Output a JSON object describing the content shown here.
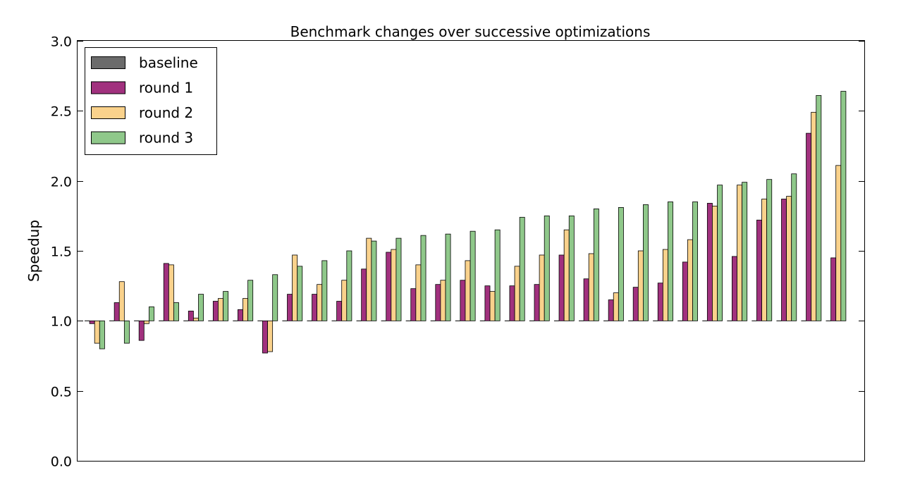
{
  "chart_data": {
    "type": "bar",
    "title": "Benchmark changes over successive optimizations",
    "xlabel": "",
    "ylabel": "Speedup",
    "ylim": [
      0.0,
      3.0
    ],
    "yticks": [
      0.0,
      0.5,
      1.0,
      1.5,
      2.0,
      2.5,
      3.0
    ],
    "ytick_labels": [
      "0.0",
      "0.5",
      "1.0",
      "1.5",
      "2.0",
      "2.5",
      "3.0"
    ],
    "baseline": 1.0,
    "grid": false,
    "legend": {
      "placement": "top-left"
    },
    "series": [
      {
        "name": "baseline",
        "color": "#6b6b6b",
        "values": [
          1.0,
          1.0,
          1.0,
          1.0,
          1.0,
          1.0,
          1.0,
          1.0,
          1.0,
          1.0,
          1.0,
          1.0,
          1.0,
          1.0,
          1.0,
          1.0,
          1.0,
          1.0,
          1.0,
          1.0,
          1.0,
          1.0,
          1.0,
          1.0,
          1.0,
          1.0,
          1.0,
          1.0,
          1.0,
          1.0,
          1.0
        ]
      },
      {
        "name": "round 1",
        "color": "#a1317e",
        "values": [
          0.98,
          1.13,
          0.86,
          1.41,
          1.07,
          1.14,
          1.08,
          0.77,
          1.19,
          1.19,
          1.14,
          1.37,
          1.49,
          1.23,
          1.26,
          1.29,
          1.25,
          1.25,
          1.26,
          1.47,
          1.3,
          1.15,
          1.24,
          1.27,
          1.42,
          1.84,
          1.46,
          1.72,
          1.87,
          2.34,
          1.45
        ]
      },
      {
        "name": "round 2",
        "color": "#fad28c",
        "values": [
          0.84,
          1.28,
          0.98,
          1.4,
          1.02,
          1.16,
          1.16,
          0.78,
          1.47,
          1.26,
          1.29,
          1.59,
          1.51,
          1.4,
          1.29,
          1.43,
          1.21,
          1.39,
          1.47,
          1.65,
          1.48,
          1.2,
          1.5,
          1.51,
          1.58,
          1.82,
          1.97,
          1.87,
          1.89,
          2.49,
          2.11
        ]
      },
      {
        "name": "round 3",
        "color": "#8fc88a",
        "values": [
          0.8,
          0.84,
          1.1,
          1.13,
          1.19,
          1.21,
          1.29,
          1.33,
          1.39,
          1.43,
          1.5,
          1.57,
          1.59,
          1.61,
          1.62,
          1.64,
          1.65,
          1.74,
          1.75,
          1.75,
          1.8,
          1.81,
          1.83,
          1.85,
          1.85,
          1.97,
          1.99,
          2.01,
          2.05,
          2.61,
          2.64
        ]
      }
    ]
  }
}
